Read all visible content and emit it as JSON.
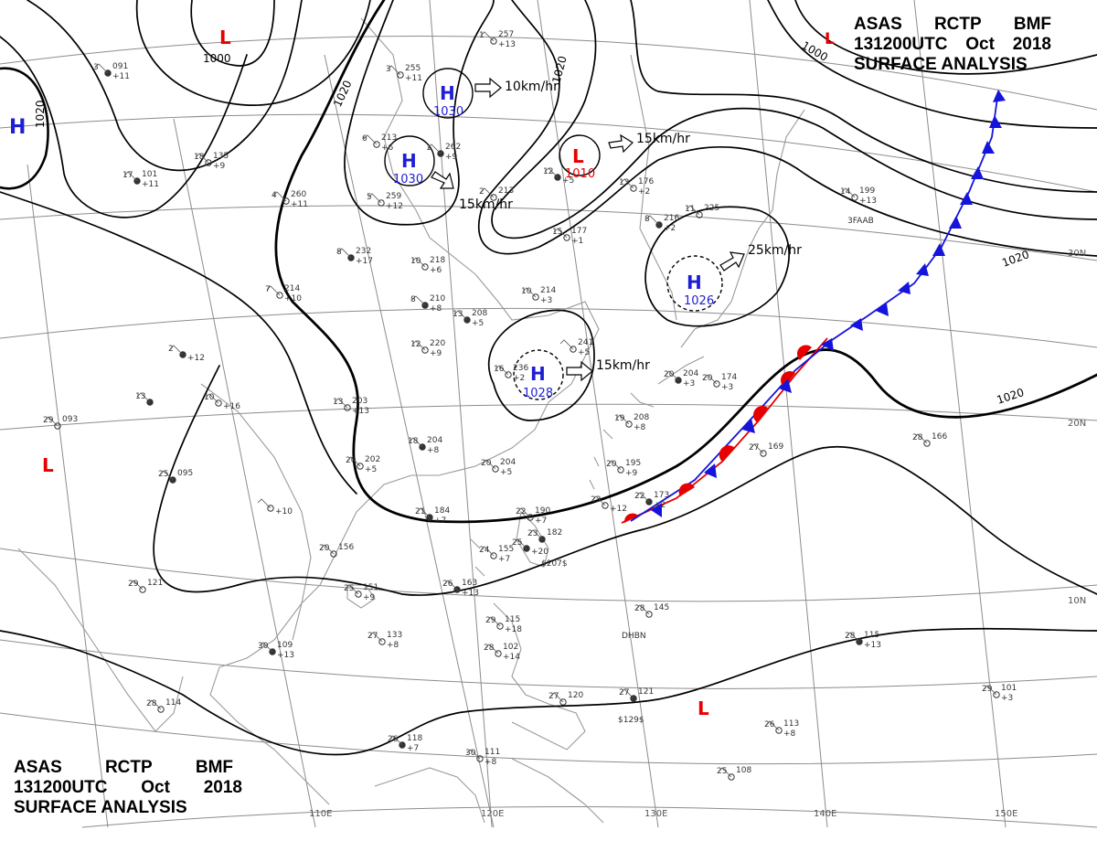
{
  "header": {
    "agency": [
      "ASAS",
      "RCTP",
      "BMF"
    ],
    "datetime": [
      "131200UTC",
      "Oct",
      "2018"
    ],
    "product": "SURFACE ANALYSIS"
  },
  "colors": {
    "high": "#1e1ed2",
    "low": "#e60000",
    "cold_front": "#1414dc",
    "warm_front": "#e60000",
    "isobar": "#000000",
    "grid": "#8c8c8c",
    "coast": "#9a9a9a"
  },
  "pressure_centers": [
    {
      "type": "H",
      "value": "1030",
      "motion": "10km/hr"
    },
    {
      "type": "H",
      "value": "1030",
      "motion": "15km/hr"
    },
    {
      "type": "L",
      "value": "1010",
      "motion": "15km/hr"
    },
    {
      "type": "H",
      "value": "1026",
      "motion": "25km/hr"
    },
    {
      "type": "H",
      "value": "1028",
      "motion": "15km/hr"
    },
    {
      "type": "H",
      "value": "",
      "motion": ""
    },
    {
      "type": "L",
      "value": "",
      "motion": ""
    },
    {
      "type": "L",
      "value": "",
      "motion": ""
    },
    {
      "type": "L",
      "value": "",
      "motion": ""
    }
  ],
  "isobar_labels": [
    "1000",
    "1000",
    "1020",
    "1020",
    "1020",
    "1020",
    "1020"
  ],
  "graticule": {
    "longitudes": [
      "110E",
      "120E",
      "130E",
      "140E",
      "150E"
    ],
    "latitudes": [
      "30N",
      "20N",
      "10N"
    ]
  },
  "stations": [
    {
      "t": "3",
      "p": "091",
      "d": "+11"
    },
    {
      "t": "1",
      "p": "257",
      "d": "+13"
    },
    {
      "t": "3",
      "p": "255",
      "d": "+11"
    },
    {
      "t": "1",
      "p": "262",
      "d": "+9"
    },
    {
      "t": "6",
      "p": "213",
      "d": "+6"
    },
    {
      "t": "18",
      "p": "135",
      "d": "+9"
    },
    {
      "t": "17",
      "p": "101",
      "d": "+11"
    },
    {
      "t": "4",
      "p": "260",
      "d": "+11"
    },
    {
      "t": "5",
      "p": "259",
      "d": "+12"
    },
    {
      "t": "12",
      "p": "",
      "d": "+5"
    },
    {
      "t": "2",
      "p": "213",
      "d": ""
    },
    {
      "t": "13",
      "p": "176",
      "d": "+2"
    },
    {
      "t": "8",
      "p": "232",
      "d": "+17"
    },
    {
      "t": "10",
      "p": "218",
      "d": "+6"
    },
    {
      "t": "7",
      "p": "214",
      "d": "+10"
    },
    {
      "t": "8",
      "p": "210",
      "d": "+8"
    },
    {
      "t": "10",
      "p": "214",
      "d": "+3"
    },
    {
      "t": "15",
      "p": "177",
      "d": "+1"
    },
    {
      "t": "8",
      "p": "216",
      "d": "+2"
    },
    {
      "t": "11",
      "p": "225",
      "d": ""
    },
    {
      "t": "14",
      "p": "199",
      "d": "+13"
    },
    {
      "t": "13",
      "p": "208",
      "d": "+5"
    },
    {
      "t": "12",
      "p": "220",
      "d": "+9"
    },
    {
      "t": "",
      "p": "241",
      "d": "+5"
    },
    {
      "t": "2",
      "p": "",
      "d": "+12"
    },
    {
      "t": "13",
      "p": "203",
      "d": "+13"
    },
    {
      "t": "10",
      "p": "",
      "d": "+16"
    },
    {
      "t": "13",
      "p": "",
      "d": ""
    },
    {
      "t": "29",
      "p": "093",
      "d": ""
    },
    {
      "t": "16",
      "p": "236",
      "d": "+2"
    },
    {
      "t": "20",
      "p": "204",
      "d": "+3"
    },
    {
      "t": "20",
      "p": "174",
      "d": "+3"
    },
    {
      "t": "19",
      "p": "208",
      "d": "+8"
    },
    {
      "t": "18",
      "p": "204",
      "d": "+8"
    },
    {
      "t": "20",
      "p": "202",
      "d": "+5"
    },
    {
      "t": "20",
      "p": "204",
      "d": "+5"
    },
    {
      "t": "25",
      "p": "095",
      "d": ""
    },
    {
      "t": "20",
      "p": "195",
      "d": "+9"
    },
    {
      "t": "23",
      "p": "",
      "d": "+12"
    },
    {
      "t": "22",
      "p": "173",
      "d": "+2"
    },
    {
      "t": "27",
      "p": "169",
      "d": ""
    },
    {
      "t": "28",
      "p": "166",
      "d": ""
    },
    {
      "t": "21",
      "p": "184",
      "d": "+7"
    },
    {
      "t": "22",
      "p": "190",
      "d": "+7"
    },
    {
      "t": "",
      "p": "",
      "d": "+10"
    },
    {
      "t": "23",
      "p": "182",
      "d": ""
    },
    {
      "t": "20",
      "p": "156",
      "d": ""
    },
    {
      "t": "24",
      "p": "155",
      "d": "+7"
    },
    {
      "t": "25",
      "p": "",
      "d": "+20"
    },
    {
      "t": "29",
      "p": "121",
      "d": ""
    },
    {
      "t": "25",
      "p": "151",
      "d": "+9"
    },
    {
      "t": "26",
      "p": "163",
      "d": "+13"
    },
    {
      "t": "28",
      "p": "145",
      "d": ""
    },
    {
      "t": "27",
      "p": "133",
      "d": "+8"
    },
    {
      "t": "30",
      "p": "109",
      "d": "+13"
    },
    {
      "t": "29",
      "p": "115",
      "d": "+18"
    },
    {
      "t": "28",
      "p": "102",
      "d": "+14"
    },
    {
      "t": "28",
      "p": "115",
      "d": "+13"
    },
    {
      "t": "29",
      "p": "101",
      "d": "+3"
    },
    {
      "t": "28",
      "p": "114",
      "d": ""
    },
    {
      "t": "27",
      "p": "121",
      "d": ""
    },
    {
      "t": "27",
      "p": "120",
      "d": ""
    },
    {
      "t": "26",
      "p": "113",
      "d": "+8"
    },
    {
      "t": "26",
      "p": "118",
      "d": "+7"
    },
    {
      "t": "30",
      "p": "111",
      "d": "+8"
    },
    {
      "t": "25",
      "p": "108",
      "d": ""
    }
  ],
  "misc_labels": [
    "DHBN",
    "3FAAB",
    "$129$",
    "$207$"
  ]
}
